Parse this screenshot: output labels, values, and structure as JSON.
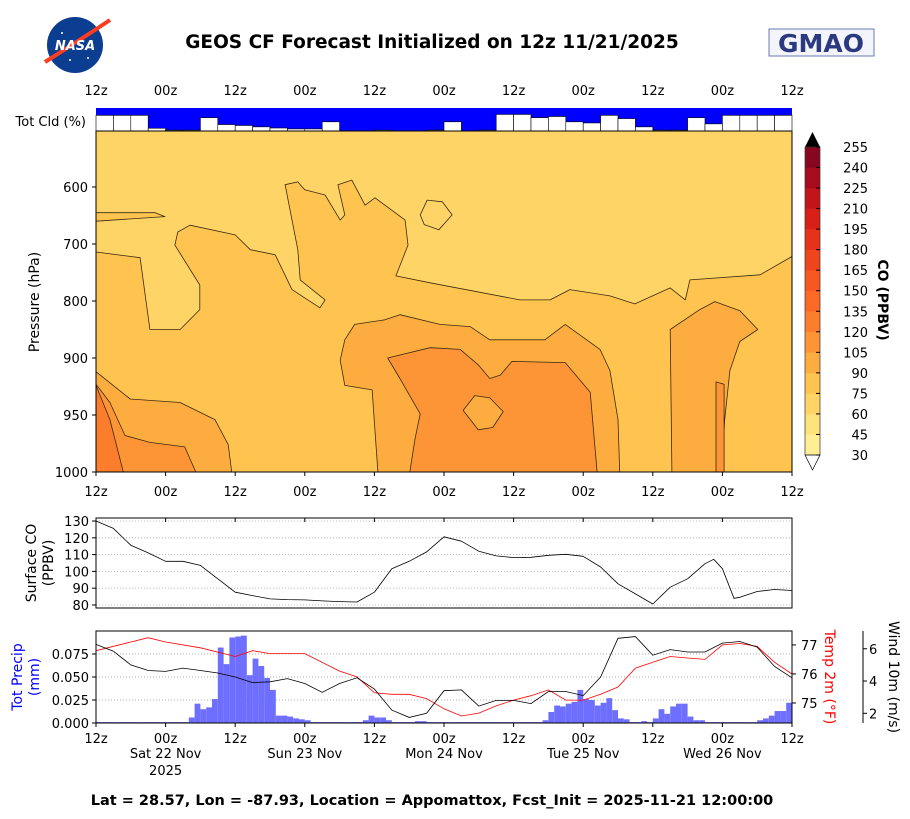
{
  "header": {
    "title": "GEOS CF Forecast Initialized on 12z 11/21/2025",
    "left_logo_text": "NASA",
    "right_logo_text": "GMAO"
  },
  "footer": "Lat = 28.57, Lon = -87.93, Location = Appomattox, Fcst_Init = 2025-11-21 12:00:00",
  "colors": {
    "cloud_bg": "#0000ff",
    "precip": "#6e6eff",
    "temp": "#ff0000",
    "wind": "#000000"
  },
  "chart_data": [
    {
      "type": "bar",
      "name": "total-cloud",
      "ylabel": "Tot Cld (%)",
      "x_tick_labels": [
        "12z",
        "00z",
        "12z",
        "00z",
        "12z",
        "00z",
        "12z",
        "00z",
        "12z",
        "00z",
        "12z"
      ],
      "x_unit": "hours since 2025-11-21 12z",
      "bar_interval_hours": 3,
      "values_percent_of_panel": [
        68,
        68,
        68,
        12,
        4,
        4,
        58,
        28,
        24,
        18,
        13,
        9,
        9,
        40,
        0,
        0,
        4,
        0,
        0,
        4,
        40,
        0,
        4,
        72,
        72,
        58,
        63,
        40,
        35,
        68,
        54,
        18,
        4,
        4,
        58,
        31,
        68,
        68,
        68,
        68
      ]
    },
    {
      "type": "contour",
      "name": "co-profile",
      "ylabel": "Pressure (hPa)",
      "y_ticks": [
        600,
        700,
        800,
        900,
        950,
        1000
      ],
      "x_tick_labels": [
        "12z",
        "00z",
        "12z",
        "00z",
        "12z",
        "00z",
        "12z",
        "00z",
        "12z",
        "00z",
        "12z"
      ],
      "xlim_hours": [
        0,
        120
      ],
      "colorbar": {
        "label": "CO (PPBV)",
        "levels": [
          30,
          45,
          60,
          75,
          90,
          105,
          120,
          135,
          150,
          165,
          180,
          195,
          210,
          225,
          240,
          255
        ],
        "colors": [
          "#ffef94",
          "#fee27a",
          "#fed467",
          "#fec44f",
          "#fdad3f",
          "#fd9536",
          "#fc7e2c",
          "#fb6a25",
          "#f6581f",
          "#ef451c",
          "#e6321a",
          "#d92017",
          "#c21419",
          "#a60c1d",
          "#870620"
        ],
        "extend_max_color": "#000000",
        "extend_min_color": "#ffffff"
      },
      "background_level": [
        75,
        90
      ],
      "regions": [
        {
          "level": [
            60,
            75
          ],
          "points": [
            [
              0,
              502
            ],
            [
              120,
              502
            ],
            [
              120,
              722
            ],
            [
              114.5,
              754
            ],
            [
              102.4,
              763
            ],
            [
              101.6,
              798
            ],
            [
              99,
              777
            ],
            [
              92.9,
              805
            ],
            [
              88.6,
              791
            ],
            [
              81.7,
              780
            ],
            [
              78.3,
              798
            ],
            [
              73.1,
              798
            ],
            [
              57.6,
              768
            ],
            [
              51.7,
              756
            ],
            [
              53.8,
              702
            ],
            [
              53.3,
              658
            ],
            [
              48.1,
              619
            ],
            [
              46.4,
              632
            ],
            [
              44.1,
              588
            ],
            [
              41.7,
              596
            ],
            [
              42.9,
              649
            ],
            [
              42.1,
              658
            ],
            [
              39.5,
              614
            ],
            [
              36,
              605
            ],
            [
              34.8,
              591
            ],
            [
              32.6,
              596
            ],
            [
              34.8,
              710
            ],
            [
              35.2,
              763
            ],
            [
              39.5,
              798
            ],
            [
              38.6,
              812
            ],
            [
              33.8,
              780
            ],
            [
              30.9,
              719
            ],
            [
              26.6,
              710
            ],
            [
              24,
              684
            ],
            [
              16.2,
              667
            ],
            [
              14.1,
              679
            ],
            [
              13.6,
              702
            ],
            [
              17.9,
              772
            ],
            [
              17.9,
              815
            ],
            [
              14.5,
              850
            ],
            [
              9.3,
              850
            ],
            [
              7.6,
              724
            ],
            [
              0,
              714
            ],
            [
              0,
              660
            ],
            [
              11.9,
              652
            ],
            [
              10.2,
              645
            ],
            [
              0,
              645
            ]
          ]
        },
        {
          "level": [
            60,
            75
          ],
          "points": [
            [
              55.9,
              649
            ],
            [
              57.1,
              623
            ],
            [
              59.7,
              626
            ],
            [
              61.4,
              649
            ],
            [
              59.1,
              675
            ],
            [
              56.6,
              666
            ]
          ]
        },
        {
          "level": [
            90,
            105
          ],
          "points": [
            [
              0,
              912
            ],
            [
              5.9,
              936
            ],
            [
              14.5,
              939
            ],
            [
              20.5,
              954
            ],
            [
              22.8,
              976
            ],
            [
              23.4,
              1000
            ],
            [
              0,
              1000
            ]
          ]
        },
        {
          "level": [
            90,
            105
          ],
          "points": [
            [
              48.6,
              1000
            ],
            [
              47.6,
              928
            ],
            [
              42.9,
              924
            ],
            [
              42.1,
              902
            ],
            [
              42.9,
              868
            ],
            [
              44.6,
              841
            ],
            [
              49.8,
              833
            ],
            [
              52.4,
              824
            ],
            [
              59.3,
              841
            ],
            [
              64.5,
              845
            ],
            [
              67.9,
              868
            ],
            [
              77.4,
              868
            ],
            [
              80.9,
              841
            ],
            [
              86.9,
              885
            ],
            [
              88.6,
              911
            ],
            [
              90,
              954
            ],
            [
              90.3,
              1000
            ]
          ]
        },
        {
          "level": [
            90,
            105
          ],
          "points": [
            [
              99.3,
              1000
            ],
            [
              99,
              850
            ],
            [
              104.1,
              815
            ],
            [
              106.7,
              801
            ],
            [
              111,
              817
            ],
            [
              114.1,
              850
            ],
            [
              111,
              871
            ],
            [
              109.3,
              911
            ],
            [
              108.4,
              954
            ],
            [
              107.9,
              1000
            ]
          ]
        },
        {
          "level": [
            105,
            120
          ],
          "points": [
            [
              0,
              923
            ],
            [
              2.4,
              939
            ],
            [
              5,
              968
            ],
            [
              9.3,
              974
            ],
            [
              15.3,
              978
            ],
            [
              17.2,
              1000
            ],
            [
              0,
              1000
            ]
          ]
        },
        {
          "level": [
            105,
            120
          ],
          "points": [
            [
              50.3,
              900
            ],
            [
              57.6,
              882
            ],
            [
              62.8,
              885
            ],
            [
              65.9,
              906
            ],
            [
              67.9,
              918
            ],
            [
              69.7,
              915
            ],
            [
              71.7,
              903
            ],
            [
              80.9,
              904
            ],
            [
              85.2,
              930
            ],
            [
              86.4,
              1000
            ],
            [
              54.1,
              1000
            ],
            [
              55,
              971
            ],
            [
              55.9,
              949
            ],
            [
              52.4,
              918
            ]
          ]
        },
        {
          "level": [
            90,
            105
          ],
          "points": [
            [
              63.3,
              946
            ],
            [
              65.3,
              933
            ],
            [
              67.9,
              935
            ],
            [
              70.2,
              947
            ],
            [
              68.4,
              961
            ],
            [
              65.9,
              963
            ]
          ]
        },
        {
          "level": [
            105,
            120
          ],
          "points": [
            [
              106.9,
              1000
            ],
            [
              106.9,
              921
            ],
            [
              108.3,
              923
            ],
            [
              108.3,
              1000
            ]
          ]
        },
        {
          "level": [
            120,
            135
          ],
          "points": [
            [
              0,
              924
            ],
            [
              2.4,
              954
            ],
            [
              4.7,
              1000
            ],
            [
              0,
              1000
            ]
          ]
        }
      ]
    },
    {
      "type": "line",
      "name": "surface-co",
      "ylabel": "Surface CO\n(PPBV)",
      "ylabel_lines": [
        "Surface CO",
        "(PPBV)"
      ],
      "y_ticks": [
        80,
        90,
        100,
        110,
        120,
        130
      ],
      "ylim": [
        78.2,
        131.8
      ],
      "grid": true,
      "x_hours": [
        0,
        3,
        6,
        9,
        12,
        15,
        18,
        21,
        24,
        27,
        30,
        33,
        36,
        39,
        42,
        45,
        48,
        51,
        54,
        57,
        60,
        63,
        66,
        69,
        72,
        75,
        78,
        81,
        84,
        87,
        90,
        93,
        96,
        99,
        102,
        105,
        106.5,
        108,
        110,
        111,
        114,
        117,
        120
      ],
      "values": [
        130,
        125.6,
        115.6,
        111,
        106,
        106,
        103.6,
        95.6,
        87.6,
        85.6,
        83.6,
        83.2,
        83,
        82.4,
        82,
        81.8,
        87.6,
        101.6,
        106,
        111.6,
        120.6,
        118,
        112,
        109.2,
        108.2,
        108.4,
        109.6,
        110.2,
        109,
        102.6,
        92.6,
        86.6,
        80.6,
        90.6,
        95.6,
        104.6,
        107.2,
        101.6,
        84,
        84.6,
        88,
        89.2,
        88.6
      ]
    },
    {
      "type": "bar+line",
      "name": "precip-temp-wind",
      "x_tick_labels": [
        "12z",
        "00z",
        "12z",
        "00z",
        "12z",
        "00z",
        "12z",
        "00z",
        "12z",
        "00z",
        "12z"
      ],
      "date_labels": [
        "Sat 22 Nov",
        "Sun 23 Nov",
        "Mon 24 Nov",
        "Tue 25 Nov",
        "Wed 26 Nov"
      ],
      "year_label": "2025",
      "precip": {
        "label_lines": [
          "Tot Precip",
          "(mm)"
        ],
        "y_ticks": [
          "0.000",
          "0.025",
          "0.050",
          "0.075"
        ],
        "ylim": [
          0,
          0.1
        ],
        "bar_interval_hours": 1,
        "values": [
          0.001,
          0.001,
          0.001,
          0.001,
          0.001,
          0.001,
          0.001,
          0.001,
          0.001,
          0.001,
          0.001,
          0.001,
          0.001,
          0.001,
          0.001,
          0.001,
          0.006,
          0.021,
          0.015,
          0.017,
          0.026,
          0.082,
          0.064,
          0.093,
          0.094,
          0.095,
          0.052,
          0.07,
          0.062,
          0.049,
          0.036,
          0.008,
          0.008,
          0.007,
          0.005,
          0.004,
          0.003,
          0.001,
          0.001,
          0.001,
          0.001,
          0.001,
          0.001,
          0.001,
          0.001,
          0.001,
          0.003,
          0.008,
          0.006,
          0.006,
          0.003,
          0.001,
          0.001,
          0.001,
          0.001,
          0.002,
          0.002,
          0.001,
          0.001,
          0.001,
          0.001,
          0.001,
          0.001,
          0.001,
          0.001,
          0.001,
          0.001,
          0.001,
          0.001,
          0.001,
          0.001,
          0.001,
          0.001,
          0.001,
          0.001,
          0.001,
          0.001,
          0.003,
          0.012,
          0.019,
          0.018,
          0.021,
          0.023,
          0.036,
          0.026,
          0.025,
          0.019,
          0.022,
          0.027,
          0.014,
          0.005,
          0.004,
          0.001,
          0.001,
          0.002,
          0.001,
          0.005,
          0.015,
          0.01,
          0.018,
          0.021,
          0.021,
          0.007,
          0.003,
          0.003,
          0.001,
          0.001,
          0.001,
          0.001,
          0.001,
          0.001,
          0.001,
          0.001,
          0.001,
          0.003,
          0.005,
          0.008,
          0.013,
          0.013,
          0.022
        ]
      },
      "temp": {
        "label": "Temp 2m (°F)",
        "y_ticks": [
          75,
          76,
          77
        ],
        "ylim": [
          74.31,
          77.48
        ],
        "x_hours": [
          0,
          6,
          9,
          12,
          18,
          24,
          27,
          30,
          36,
          42,
          45,
          48,
          51,
          54,
          57,
          60,
          63,
          66,
          69,
          72,
          75,
          78,
          81,
          84,
          87,
          90,
          93,
          96,
          99,
          102,
          105,
          108,
          111,
          114,
          117,
          120
        ],
        "values": [
          76.8,
          77.1,
          77.25,
          77.1,
          76.9,
          76.6,
          76.8,
          76.7,
          76.7,
          76.1,
          75.9,
          75.35,
          75.3,
          75.3,
          75.15,
          74.8,
          74.55,
          74.65,
          74.9,
          75.1,
          75.25,
          75.45,
          75.1,
          75.1,
          75.3,
          75.55,
          76.2,
          76.4,
          76.6,
          76.55,
          76.5,
          77.0,
          77.05,
          76.95,
          76.4,
          76.0
        ]
      },
      "wind": {
        "label": "Wind 10m (m/s)",
        "y_ticks": [
          2,
          4,
          6
        ],
        "ylim": [
          1.4,
          7.1
        ],
        "x_hours": [
          0,
          3,
          6,
          9,
          12,
          15,
          18,
          21,
          24,
          27,
          30,
          33,
          36,
          39,
          42,
          45,
          48,
          51,
          54,
          57,
          60,
          63,
          66,
          69,
          72,
          75,
          78,
          81,
          84,
          87,
          90,
          93,
          96,
          99,
          102,
          105,
          108,
          111,
          114,
          117,
          120
        ],
        "values": [
          6.27,
          5.85,
          5.0,
          4.65,
          4.6,
          4.8,
          4.65,
          4.5,
          4.25,
          3.9,
          3.95,
          4.15,
          3.85,
          3.3,
          3.85,
          4.2,
          3.5,
          2.2,
          1.75,
          2.0,
          3.4,
          3.45,
          2.45,
          2.8,
          2.8,
          2.6,
          3.35,
          3.35,
          3.1,
          4.25,
          6.65,
          6.75,
          5.6,
          5.95,
          5.8,
          5.8,
          6.35,
          6.45,
          6.1,
          4.9,
          4.2
        ]
      }
    }
  ]
}
